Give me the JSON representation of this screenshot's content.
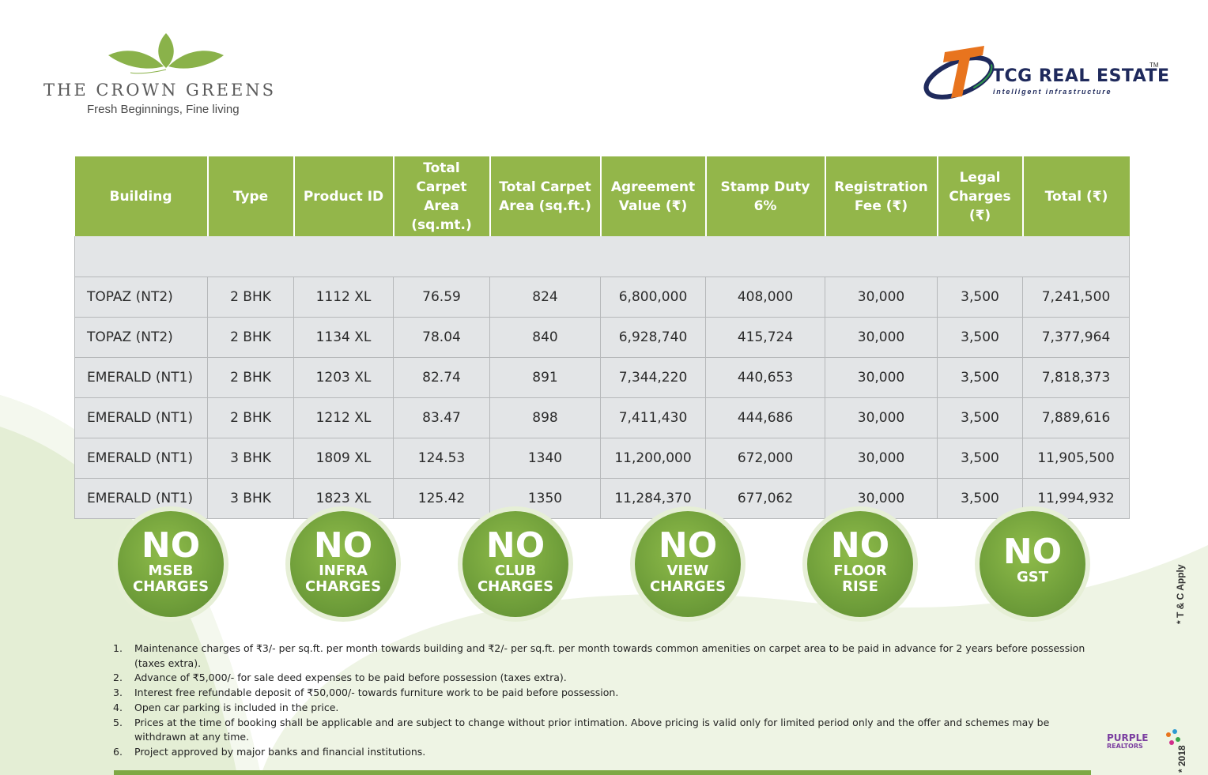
{
  "brand": {
    "title": "THE CROWN GREENS",
    "tagline": "Fresh Beginnings, Fine living",
    "leaf_color": "#8ab24a"
  },
  "developer": {
    "name": "TCG REAL ESTATE",
    "tm": "TM",
    "tagline": "intelligent infrastructure",
    "colors": {
      "orange": "#e8741e",
      "navy": "#1f2a5c",
      "green": "#2e9a4a"
    }
  },
  "table": {
    "headers": [
      "Building",
      "Type",
      "Product ID",
      "Total Carpet Area (sq.mt.)",
      "Total Carpet Area (sq.ft.)",
      "Agreement Value (₹)",
      "Stamp Duty 6%",
      "Registration Fee (₹)",
      "Legal Charges (₹)",
      "Total (₹)"
    ],
    "rows": [
      [
        "TOPAZ (NT2)",
        "2 BHK",
        "1112 XL",
        "76.59",
        "824",
        "6,800,000",
        "408,000",
        "30,000",
        "3,500",
        "7,241,500"
      ],
      [
        "TOPAZ (NT2)",
        "2 BHK",
        "1134 XL",
        "78.04",
        "840",
        "6,928,740",
        "415,724",
        "30,000",
        "3,500",
        "7,377,964"
      ],
      [
        "EMERALD (NT1)",
        "2 BHK",
        "1203 XL",
        "82.74",
        "891",
        "7,344,220",
        "440,653",
        "30,000",
        "3,500",
        "7,818,373"
      ],
      [
        "EMERALD (NT1)",
        "2 BHK",
        "1212 XL",
        "83.47",
        "898",
        "7,411,430",
        "444,686",
        "30,000",
        "3,500",
        "7,889,616"
      ],
      [
        "EMERALD (NT1)",
        "3 BHK",
        "1809 XL",
        "124.53",
        "1340",
        "11,200,000",
        "672,000",
        "30,000",
        "3,500",
        "11,905,500"
      ],
      [
        "EMERALD (NT1)",
        "3 BHK",
        "1823 XL",
        "125.42",
        "1350",
        "11,284,370",
        "677,062",
        "30,000",
        "3,500",
        "11,994,932"
      ]
    ],
    "header_color": "#93b64a",
    "row_color": "#e3e5e7"
  },
  "badges": [
    {
      "no": "NO",
      "line1": "MSEB",
      "line2": "CHARGES"
    },
    {
      "no": "NO",
      "line1": "INFRA",
      "line2": "CHARGES"
    },
    {
      "no": "NO",
      "line1": "CLUB",
      "line2": "CHARGES"
    },
    {
      "no": "NO",
      "line1": "VIEW",
      "line2": "CHARGES"
    },
    {
      "no": "NO",
      "line1": "FLOOR",
      "line2": "RISE"
    },
    {
      "no": "NO",
      "line1": "GST",
      "line2": ""
    }
  ],
  "side_note": "* T & C Apply",
  "year_note": "* 2018",
  "notes": [
    {
      "num": "1.",
      "text": "Maintenance charges of ₹3/- per sq.ft. per month towards building and ₹2/- per sq.ft. per month towards common amenities on carpet area to be paid in advance for 2 years before possession (taxes extra)."
    },
    {
      "num": "2.",
      "text": "Advance of ₹5,000/- for sale deed expenses to be paid before possession (taxes extra)."
    },
    {
      "num": "3.",
      "text": "Interest free refundable deposit of ₹50,000/- towards furniture work to be paid before possession."
    },
    {
      "num": "4.",
      "text": "Open car parking is included in the price."
    },
    {
      "num": "5.",
      "text": "Prices at the time of booking shall be applicable and are subject to change without prior intimation. Above pricing is valid only for limited period only and the offer and schemes may be withdrawn at any time."
    },
    {
      "num": "6.",
      "text": "Project approved by major banks and financial institutions."
    }
  ],
  "partner_logo": {
    "line1": "PURPLE",
    "line2": "REALTORS"
  }
}
